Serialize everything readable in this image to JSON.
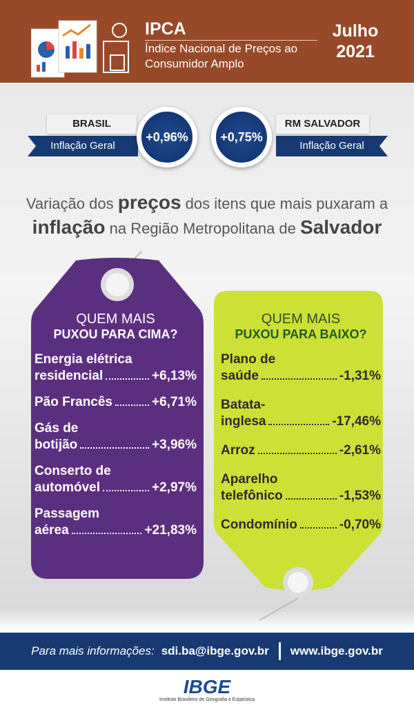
{
  "header": {
    "title": "IPCA",
    "subtitle": "Índice Nacional de Preços ao Consumidor Amplo",
    "month": "Julho",
    "year": "2021"
  },
  "badges": [
    {
      "label": "BRASIL",
      "sublabel": "Inflação Geral",
      "value": "+0,96%"
    },
    {
      "label": "RM SALVADOR",
      "sublabel": "Inflação Geral",
      "value": "+0,75%"
    }
  ],
  "headline": {
    "lines": [
      [
        {
          "text": "Variação dos",
          "bold": false
        },
        {
          "text": "preços",
          "bold": true
        },
        {
          "text": "dos itens que mais puxaram a",
          "bold": false
        }
      ],
      [
        {
          "text": "inflação",
          "bold": true
        },
        {
          "text": "na Região Metropolitana de",
          "bold": false
        },
        {
          "text": "Salvador",
          "bold": true
        }
      ]
    ]
  },
  "up": {
    "heading": "QUEM MAIS",
    "subheading": "PUXOU PARA CIMA?",
    "items": [
      {
        "label": [
          "Energia elétrica",
          "residencial"
        ],
        "value": "+6,13%"
      },
      {
        "label": [
          "Pão Francês"
        ],
        "value": "+6,71%"
      },
      {
        "label": [
          "Gás de",
          "botijão"
        ],
        "value": "+3,96%"
      },
      {
        "label": [
          "Conserto de",
          "automóvel"
        ],
        "value": "+2,97%"
      },
      {
        "label": [
          "Passagem",
          "aérea"
        ],
        "value": "+21,83%"
      }
    ]
  },
  "down": {
    "heading": "QUEM MAIS",
    "subheading": "PUXOU PARA BAIXO?",
    "items": [
      {
        "label": [
          "Plano de",
          "saúde"
        ],
        "value": "-1,31%"
      },
      {
        "label": [
          "Batata-",
          "inglesa"
        ],
        "value": "-17,46%"
      },
      {
        "label": [
          "Arroz"
        ],
        "value": "-2,61%"
      },
      {
        "label": [
          "Aparelho",
          "telefônico"
        ],
        "value": "-1,53%"
      },
      {
        "label": [
          "Condomínio"
        ],
        "value": "-0,70%"
      }
    ]
  },
  "footer": {
    "prompt": "Para mais informações:",
    "email": "sdi.ba@ibge.gov.br",
    "site": "www.ibge.gov.br"
  },
  "logo": {
    "name": "IBGE",
    "full_name": "Instituto Brasileiro de Geografia e Estatística"
  }
}
